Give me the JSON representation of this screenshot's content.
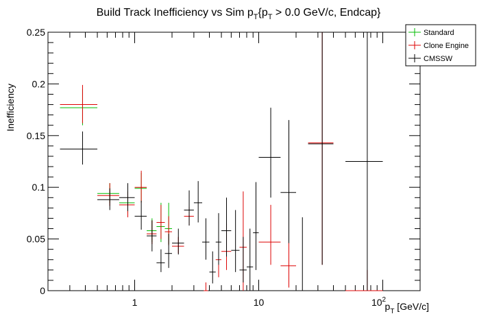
{
  "chart_data": {
    "type": "scatter",
    "title": "Build Track Inefficiency vs Sim p_T {p_T > 0.0 GeV/c, Endcap}",
    "title_parts": [
      "Build Track Inefficiency vs Sim p",
      "T",
      "{p",
      "T",
      " > 0.0 GeV/c, Endcap}"
    ],
    "xlabel": "p_T [GeV/c]",
    "xlabel_parts": [
      "p",
      "T",
      " [GeV/c]"
    ],
    "ylabel": "Inefficiency",
    "x_scale": "log",
    "xlim": [
      0.2,
      200
    ],
    "ylim": [
      0,
      0.25
    ],
    "x_ticks": [
      {
        "value": 1,
        "label": "1"
      },
      {
        "value": 10,
        "label": "10"
      }
    ],
    "x_tick_exp_label": {
      "value": 100,
      "base": "10",
      "exp": "2"
    },
    "y_ticks": [
      0,
      0.05,
      0.1,
      0.15,
      0.2,
      0.25
    ],
    "y_tick_labels": [
      "0",
      "0.05",
      "0.1",
      "0.15",
      "0.2",
      "0.25"
    ],
    "grid": false,
    "legend_position": "top-right",
    "series": [
      {
        "name": "Standard",
        "color": "#00bb00",
        "points": [
          {
            "x": 0.38,
            "xlo": 0.25,
            "xhi": 0.5,
            "y": 0.177,
            "ylo": 0.16,
            "yhi": 0.195
          },
          {
            "x": 0.63,
            "xlo": 0.5,
            "xhi": 0.75,
            "y": 0.094,
            "ylo": 0.085,
            "yhi": 0.104
          },
          {
            "x": 0.88,
            "xlo": 0.75,
            "xhi": 1.0,
            "y": 0.085,
            "ylo": 0.075,
            "yhi": 0.096
          },
          {
            "x": 1.13,
            "xlo": 1.0,
            "xhi": 1.25,
            "y": 0.099,
            "ylo": 0.086,
            "yhi": 0.114
          },
          {
            "x": 1.38,
            "xlo": 1.25,
            "xhi": 1.5,
            "y": 0.058,
            "ylo": 0.047,
            "yhi": 0.07
          },
          {
            "x": 1.63,
            "xlo": 1.5,
            "xhi": 1.75,
            "y": 0.062,
            "ylo": 0.047,
            "yhi": 0.085
          },
          {
            "x": 1.88,
            "xlo": 1.75,
            "xhi": 2.0,
            "y": 0.06,
            "ylo": 0.045,
            "yhi": 0.085
          }
        ]
      },
      {
        "name": "Clone Engine",
        "color": "#dd0000",
        "points": [
          {
            "x": 0.38,
            "xlo": 0.25,
            "xhi": 0.5,
            "y": 0.18,
            "ylo": 0.162,
            "yhi": 0.199
          },
          {
            "x": 0.63,
            "xlo": 0.5,
            "xhi": 0.75,
            "y": 0.092,
            "ylo": 0.082,
            "yhi": 0.104
          },
          {
            "x": 0.88,
            "xlo": 0.75,
            "xhi": 1.0,
            "y": 0.083,
            "ylo": 0.071,
            "yhi": 0.096
          },
          {
            "x": 1.13,
            "xlo": 1.0,
            "xhi": 1.25,
            "y": 0.1,
            "ylo": 0.085,
            "yhi": 0.116
          },
          {
            "x": 1.38,
            "xlo": 1.25,
            "xhi": 1.5,
            "y": 0.055,
            "ylo": 0.045,
            "yhi": 0.068
          },
          {
            "x": 1.63,
            "xlo": 1.5,
            "xhi": 1.75,
            "y": 0.066,
            "ylo": 0.05,
            "yhi": 0.083
          },
          {
            "x": 1.88,
            "xlo": 1.75,
            "xhi": 2.0,
            "y": 0.057,
            "ylo": 0.044,
            "yhi": 0.072
          },
          {
            "x": 2.25,
            "xlo": 2.0,
            "xhi": 2.5,
            "y": 0.043,
            "ylo": 0.036,
            "yhi": 0.052
          },
          {
            "x": 2.75,
            "xlo": 2.5,
            "xhi": 3.0,
            "y": 0.072,
            "ylo": 0.063,
            "yhi": 0.081
          },
          {
            "x": 3.75,
            "xlo": 3.6,
            "xhi": 3.9,
            "y": 0.0,
            "ylo": 0.0,
            "yhi": 0.008
          },
          {
            "x": 4.75,
            "xlo": 4.5,
            "xhi": 5.0,
            "y": 0.03,
            "ylo": 0.013,
            "yhi": 0.068
          },
          {
            "x": 5.5,
            "xlo": 5.0,
            "xhi": 6.0,
            "y": 0.038,
            "ylo": 0.02,
            "yhi": 0.065
          },
          {
            "x": 7.5,
            "xlo": 7.0,
            "xhi": 8.0,
            "y": 0.042,
            "ylo": 0.0,
            "yhi": 0.096
          },
          {
            "x": 12.5,
            "xlo": 10.0,
            "xhi": 15.0,
            "y": 0.047,
            "ylo": 0.025,
            "yhi": 0.083
          },
          {
            "x": 17.5,
            "xlo": 15.0,
            "xhi": 20.0,
            "y": 0.024,
            "ylo": 0.003,
            "yhi": 0.062
          },
          {
            "x": 32.5,
            "xlo": 25.0,
            "xhi": 40.0,
            "y": 0.143,
            "ylo": 0.025,
            "yhi": 0.25
          },
          {
            "x": 75.0,
            "xlo": 50.0,
            "xhi": 100.0,
            "y": 0.0,
            "ylo": 0.0,
            "yhi": 0.02
          }
        ]
      },
      {
        "name": "CMSSW",
        "color": "#000000",
        "points": [
          {
            "x": 0.38,
            "xlo": 0.25,
            "xhi": 0.5,
            "y": 0.137,
            "ylo": 0.122,
            "yhi": 0.154
          },
          {
            "x": 0.63,
            "xlo": 0.5,
            "xhi": 0.75,
            "y": 0.088,
            "ylo": 0.078,
            "yhi": 0.099
          },
          {
            "x": 0.88,
            "xlo": 0.75,
            "xhi": 1.0,
            "y": 0.09,
            "ylo": 0.077,
            "yhi": 0.104
          },
          {
            "x": 1.13,
            "xlo": 1.0,
            "xhi": 1.25,
            "y": 0.072,
            "ylo": 0.059,
            "yhi": 0.087
          },
          {
            "x": 1.38,
            "xlo": 1.25,
            "xhi": 1.5,
            "y": 0.053,
            "ylo": 0.038,
            "yhi": 0.068
          },
          {
            "x": 1.63,
            "xlo": 1.5,
            "xhi": 1.75,
            "y": 0.027,
            "ylo": 0.018,
            "yhi": 0.04
          },
          {
            "x": 1.88,
            "xlo": 1.75,
            "xhi": 2.0,
            "y": 0.036,
            "ylo": 0.022,
            "yhi": 0.055
          },
          {
            "x": 2.25,
            "xlo": 2.0,
            "xhi": 2.5,
            "y": 0.046,
            "ylo": 0.035,
            "yhi": 0.06
          },
          {
            "x": 2.75,
            "xlo": 2.5,
            "xhi": 3.0,
            "y": 0.078,
            "ylo": 0.063,
            "yhi": 0.097
          },
          {
            "x": 3.25,
            "xlo": 3.0,
            "xhi": 3.5,
            "y": 0.085,
            "ylo": 0.066,
            "yhi": 0.106
          },
          {
            "x": 3.75,
            "xlo": 3.5,
            "xhi": 4.0,
            "y": 0.047,
            "ylo": 0.03,
            "yhi": 0.07
          },
          {
            "x": 4.25,
            "xlo": 4.0,
            "xhi": 4.5,
            "y": 0.018,
            "ylo": 0.007,
            "yhi": 0.038
          },
          {
            "x": 4.75,
            "xlo": 4.5,
            "xhi": 5.0,
            "y": 0.047,
            "ylo": 0.025,
            "yhi": 0.075
          },
          {
            "x": 5.5,
            "xlo": 5.0,
            "xhi": 6.0,
            "y": 0.058,
            "ylo": 0.033,
            "yhi": 0.09
          },
          {
            "x": 6.5,
            "xlo": 6.0,
            "xhi": 7.0,
            "y": 0.039,
            "ylo": 0.018,
            "yhi": 0.078
          },
          {
            "x": 7.5,
            "xlo": 7.0,
            "xhi": 8.0,
            "y": 0.02,
            "ylo": 0.008,
            "yhi": 0.052
          },
          {
            "x": 8.5,
            "xlo": 8.0,
            "xhi": 9.0,
            "y": 0.023,
            "ylo": 0.0,
            "yhi": 0.06
          },
          {
            "x": 9.5,
            "xlo": 9.0,
            "xhi": 10.0,
            "y": 0.056,
            "ylo": 0.02,
            "yhi": 0.105
          },
          {
            "x": 12.5,
            "xlo": 10.0,
            "xhi": 15.0,
            "y": 0.129,
            "ylo": 0.09,
            "yhi": 0.177
          },
          {
            "x": 17.5,
            "xlo": 15.0,
            "xhi": 20.0,
            "y": 0.095,
            "ylo": 0.046,
            "yhi": 0.165
          },
          {
            "x": 22.5,
            "xlo": 20.0,
            "xhi": 25.0,
            "y": 0.0,
            "ylo": 0.0,
            "yhi": 0.071
          },
          {
            "x": 32.5,
            "xlo": 25.0,
            "xhi": 40.0,
            "y": 0.142,
            "ylo": 0.025,
            "yhi": 0.25
          },
          {
            "x": 75.0,
            "xlo": 50.0,
            "xhi": 100.0,
            "y": 0.125,
            "ylo": 0.0,
            "yhi": 0.25
          }
        ]
      }
    ]
  }
}
